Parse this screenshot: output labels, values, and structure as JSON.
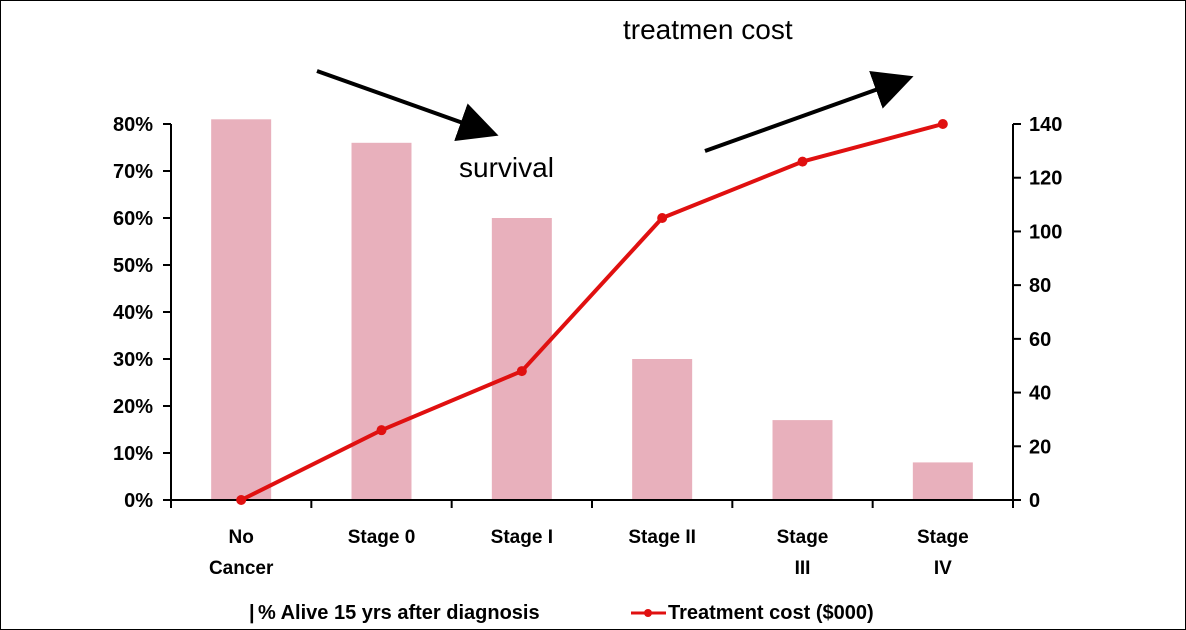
{
  "chart_data": {
    "type": "bar",
    "categories": [
      "No\nCancer",
      "Stage 0",
      "Stage I",
      "Stage II",
      "Stage\nIII",
      "Stage\nIV"
    ],
    "series": [
      {
        "name": "% Alive 15 yrs after diagnosis",
        "type": "bar",
        "axis": "left",
        "values": [
          81,
          76,
          60,
          30,
          17,
          8
        ]
      },
      {
        "name": "Treatment cost ($000)",
        "type": "line",
        "axis": "right",
        "values": [
          0,
          26,
          48,
          105,
          126,
          140
        ]
      }
    ],
    "y_left": {
      "ylim": [
        0,
        80
      ],
      "ticks": [
        0,
        10,
        20,
        30,
        40,
        50,
        60,
        70,
        80
      ],
      "tick_suffix": "%"
    },
    "y_right": {
      "ylim": [
        0,
        140
      ],
      "ticks": [
        0,
        20,
        40,
        60,
        80,
        100,
        120,
        140
      ]
    },
    "annotations": [
      "treatmen cost",
      "survival"
    ],
    "legend": {
      "position": "bottom"
    },
    "grid": false,
    "colors": {
      "bar": "#e8b0bc",
      "line": "#e01010"
    }
  }
}
